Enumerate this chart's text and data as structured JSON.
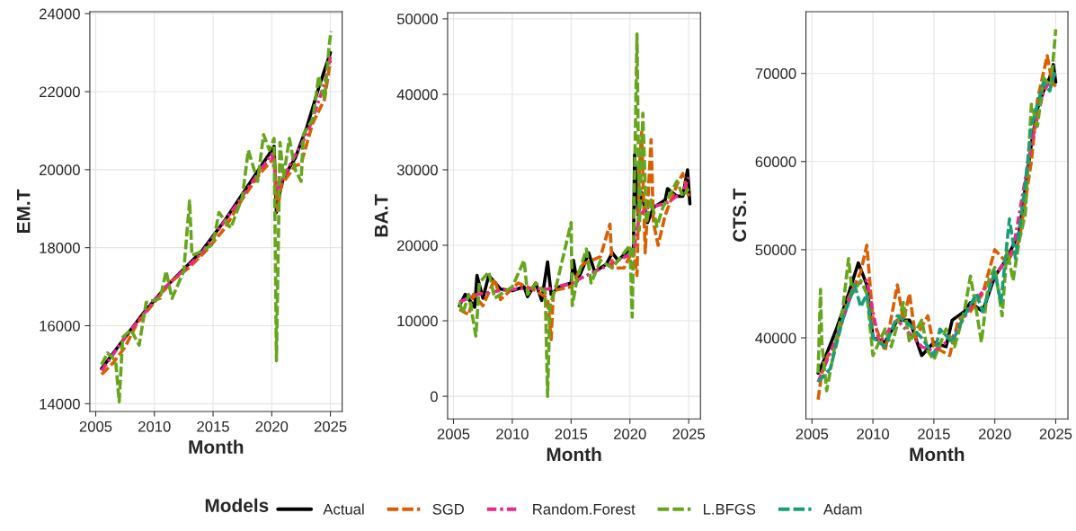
{
  "chart_data": [
    {
      "type": "line",
      "xlabel": "Month",
      "ylabel": "EM.T",
      "xlim": [
        2004.5,
        2026
      ],
      "ylim": [
        13800,
        24050
      ],
      "xticks": [
        2005,
        2010,
        2015,
        2020,
        2025
      ],
      "yticks": [
        14000,
        16000,
        18000,
        20000,
        22000,
        24000
      ],
      "grid": true,
      "legend": "bottom",
      "legend_title": "Models",
      "series": [
        {
          "name": "Actual",
          "color": "#000000",
          "line_style": "solid",
          "x": [
            2005.5,
            2006,
            2007,
            2008,
            2009,
            2010,
            2011,
            2012,
            2013,
            2014,
            2015,
            2016,
            2017,
            2018,
            2019,
            2020,
            2020.2,
            2020.4,
            2020.6,
            2021,
            2022,
            2023,
            2024,
            2025
          ],
          "values": [
            14900,
            15100,
            15500,
            15900,
            16300,
            16650,
            17000,
            17300,
            17600,
            17900,
            18300,
            18700,
            19150,
            19600,
            20050,
            20500,
            20600,
            18900,
            19300,
            19800,
            20300,
            21100,
            22100,
            23000
          ]
        },
        {
          "name": "SGD",
          "color": "#d95f02",
          "line_style": "dashed",
          "x": [
            2005.5,
            2006.5,
            2007.5,
            2008.5,
            2010,
            2011.5,
            2013,
            2014.5,
            2016,
            2017.5,
            2019,
            2020.2,
            2020.5,
            2020.8,
            2022,
            2022.5,
            2023.5,
            2024.5,
            2025
          ],
          "values": [
            14750,
            15050,
            15450,
            16050,
            16600,
            17150,
            17500,
            17950,
            18500,
            19250,
            19900,
            20300,
            18950,
            19600,
            20100,
            20150,
            21200,
            21800,
            22800
          ]
        },
        {
          "name": "Random.Forest",
          "color": "#e7298a",
          "line_style": "dotted",
          "x": [
            2005.5,
            2008,
            2011,
            2014,
            2017,
            2020,
            2020.5,
            2021.5,
            2023,
            2024.5,
            2025
          ],
          "values": [
            14850,
            15900,
            17000,
            17850,
            19100,
            20400,
            19500,
            20100,
            20900,
            22200,
            22900
          ]
        },
        {
          "name": "L.BFGS",
          "color": "#66a61e",
          "line_style": "dashed",
          "x": [
            2005.5,
            2006,
            2006.7,
            2007,
            2007.3,
            2008,
            2008.7,
            2009.3,
            2010.5,
            2011,
            2011.5,
            2012.5,
            2013,
            2013.2,
            2014,
            2015,
            2015.5,
            2016.5,
            2017.5,
            2018,
            2018.8,
            2019.3,
            2019.8,
            2020.2,
            2020.4,
            2020.7,
            2021,
            2021.5,
            2022,
            2022.5,
            2022.7,
            2023.5,
            2024,
            2024.5,
            2024.9,
            2025.05
          ],
          "values": [
            15000,
            15300,
            15100,
            14050,
            15700,
            15900,
            15500,
            16600,
            16700,
            17400,
            16700,
            17400,
            19200,
            17800,
            17900,
            18100,
            18900,
            18500,
            19300,
            20500,
            19700,
            20900,
            20500,
            20800,
            15100,
            20700,
            19800,
            20800,
            20000,
            19700,
            20900,
            21300,
            22400,
            21800,
            23200,
            23550
          ]
        }
      ]
    },
    {
      "type": "line",
      "xlabel": "Month",
      "ylabel": "BA.T",
      "xlim": [
        2004.5,
        2026
      ],
      "ylim": [
        -3000,
        50800
      ],
      "xticks": [
        2005,
        2010,
        2015,
        2020,
        2025
      ],
      "yticks": [
        0,
        10000,
        20000,
        30000,
        40000,
        50000
      ],
      "grid": true,
      "series": [
        {
          "color": "#000000",
          "line_style": "solid",
          "x": [
            2005.5,
            2006,
            2006.8,
            2007,
            2007.5,
            2008,
            2009,
            2010,
            2011,
            2011.3,
            2012,
            2012.5,
            2013,
            2013.3,
            2014,
            2015,
            2015.2,
            2015.5,
            2016,
            2016.5,
            2017,
            2018,
            2018.5,
            2019,
            2020,
            2020.3,
            2020.4,
            2020.7,
            2021,
            2021.5,
            2022,
            2023,
            2023.2,
            2024,
            2024.5,
            2024.9,
            2025.1
          ],
          "values": [
            12000,
            13500,
            11800,
            16000,
            13000,
            16000,
            14200,
            14000,
            14500,
            13200,
            15000,
            12700,
            17800,
            13500,
            14500,
            15000,
            18000,
            15200,
            17000,
            19000,
            16500,
            17500,
            19000,
            18000,
            19500,
            19000,
            32000,
            24000,
            27000,
            23000,
            25000,
            26000,
            27500,
            26500,
            26500,
            30000,
            25500
          ]
        },
        {
          "color": "#d95f02",
          "line_style": "dashed",
          "x": [
            2005.5,
            2006.3,
            2006.7,
            2007.5,
            2008.5,
            2009,
            2010.5,
            2012,
            2013,
            2013.3,
            2013.5,
            2015,
            2016,
            2017.5,
            2018.3,
            2018.5,
            2019.5,
            2020.3,
            2020.6,
            2020.8,
            2021,
            2021.3,
            2021.8,
            2022,
            2022.4,
            2023,
            2024,
            2024.5,
            2025
          ],
          "values": [
            11500,
            10800,
            13500,
            12000,
            15500,
            12800,
            15000,
            14000,
            13000,
            7500,
            14000,
            14500,
            17500,
            18500,
            22800,
            17000,
            17000,
            19500,
            16000,
            30000,
            35000,
            19000,
            34000,
            23000,
            20000,
            24000,
            28000,
            29500,
            26500
          ]
        },
        {
          "color": "#e7298a",
          "line_style": "dotted",
          "x": [
            2005.5,
            2007,
            2009,
            2011,
            2013,
            2015,
            2017,
            2019,
            2020.3,
            2020.8,
            2021.5,
            2023,
            2024.5,
            2025
          ],
          "values": [
            12500,
            13500,
            14000,
            14300,
            14200,
            15000,
            16500,
            18000,
            19000,
            24000,
            25000,
            25500,
            27000,
            29000
          ]
        },
        {
          "color": "#66a61e",
          "line_style": "dashed",
          "x": [
            2005.5,
            2005.8,
            2006.3,
            2006.9,
            2007.2,
            2008,
            2008.5,
            2010,
            2011,
            2011.3,
            2012,
            2012.8,
            2013,
            2013.2,
            2013.8,
            2015,
            2015.1,
            2015.5,
            2016.3,
            2016.7,
            2017.5,
            2018.5,
            2019.5,
            2020,
            2020.2,
            2020.6,
            2020.8,
            2021.1,
            2021.4,
            2021.8,
            2022.3,
            2022.8,
            2023.5,
            2024,
            2024.5,
            2025
          ],
          "values": [
            12500,
            11000,
            13500,
            8000,
            15000,
            16500,
            13000,
            14500,
            18000,
            13500,
            15000,
            13800,
            0,
            12000,
            15000,
            23000,
            12000,
            15500,
            19500,
            15000,
            18000,
            17000,
            19000,
            20000,
            10500,
            48000,
            22000,
            37500,
            23000,
            26000,
            22500,
            25000,
            27000,
            28500,
            26500,
            27500
          ]
        }
      ]
    },
    {
      "type": "line",
      "xlabel": "Month",
      "ylabel": "CTS.T",
      "xlim": [
        2004.5,
        2026
      ],
      "ylim": [
        30800,
        77000
      ],
      "xticks": [
        2005,
        2010,
        2015,
        2020,
        2025
      ],
      "yticks": [
        40000,
        50000,
        60000,
        70000
      ],
      "grid": true,
      "series": [
        {
          "color": "#000000",
          "line_style": "solid",
          "x": [
            2005.5,
            2006,
            2007,
            2008,
            2008.8,
            2009.5,
            2010,
            2011,
            2012,
            2013,
            2014,
            2015,
            2016,
            2016.5,
            2017.5,
            2018,
            2019,
            2020,
            2021,
            2022,
            2022.5,
            2023,
            2023.5,
            2024,
            2024.5,
            2024.8,
            2025
          ],
          "values": [
            36000,
            37500,
            41000,
            45000,
            48500,
            46000,
            40000,
            39500,
            42000,
            42000,
            38000,
            39500,
            39000,
            42000,
            43000,
            44000,
            43000,
            47000,
            49000,
            52000,
            57000,
            62000,
            66000,
            68000,
            69500,
            71000,
            69000
          ]
        },
        {
          "color": "#d95f02",
          "line_style": "dashed",
          "x": [
            2005.5,
            2005.8,
            2006.3,
            2007,
            2008,
            2009,
            2009.5,
            2010,
            2011,
            2012,
            2012.5,
            2013,
            2013.5,
            2014.5,
            2015,
            2016.3,
            2017,
            2018,
            2019,
            2020,
            2021,
            2022,
            2023,
            2023.5,
            2024.3,
            2024.7,
            2025
          ],
          "values": [
            33000,
            36000,
            38000,
            39500,
            44500,
            47500,
            50500,
            42000,
            38500,
            46000,
            42000,
            45000,
            40000,
            42500,
            39000,
            38000,
            42000,
            43000,
            45000,
            50000,
            48500,
            51000,
            60000,
            67000,
            72000,
            69000,
            68500
          ]
        },
        {
          "color": "#e7298a",
          "line_style": "dotted",
          "x": [
            2005.5,
            2007,
            2008.5,
            2009.5,
            2010.5,
            2012,
            2014,
            2015,
            2016.5,
            2018,
            2020,
            2021.5,
            2023,
            2024,
            2025
          ],
          "values": [
            35000,
            40000,
            46000,
            46500,
            39500,
            42000,
            39000,
            38500,
            40000,
            43500,
            47000,
            50000,
            62000,
            68000,
            70000
          ]
        },
        {
          "color": "#66a61e",
          "line_style": "dashed",
          "x": [
            2005.5,
            2005.7,
            2005.8,
            2006.2,
            2007,
            2007.5,
            2008,
            2008.3,
            2009,
            2009.5,
            2010,
            2011,
            2011.5,
            2012.5,
            2013,
            2014,
            2014.5,
            2015,
            2016,
            2016.7,
            2017.5,
            2018,
            2018.5,
            2018.9,
            2019.5,
            2020,
            2020.6,
            2021,
            2021.5,
            2022,
            2022.5,
            2023,
            2023.5,
            2024,
            2024.6,
            2025
          ],
          "values": [
            36000,
            45500,
            39500,
            34000,
            40000,
            43000,
            49000,
            45000,
            46500,
            45000,
            38000,
            41000,
            39000,
            44000,
            39500,
            42000,
            38500,
            37500,
            41000,
            39000,
            43000,
            47000,
            43000,
            39500,
            46500,
            48000,
            42500,
            50000,
            46500,
            51000,
            54000,
            66500,
            64000,
            69500,
            68500,
            75000
          ]
        },
        {
          "name": "Adam",
          "color": "#1b9e77",
          "line_style": "dashed",
          "x": [
            2005.5,
            2006.5,
            2007.5,
            2008.5,
            2009,
            2009.5,
            2010,
            2011,
            2012,
            2013,
            2014,
            2015,
            2015.5,
            2016.5,
            2017.5,
            2018.5,
            2019,
            2020,
            2020.5,
            2021.2,
            2021.7,
            2022.5,
            2023,
            2023.5,
            2024,
            2024.5,
            2025
          ],
          "values": [
            35000,
            36500,
            42000,
            46000,
            43500,
            45000,
            40000,
            39000,
            42500,
            41500,
            40000,
            38000,
            41000,
            39500,
            42500,
            45000,
            43000,
            47500,
            44000,
            53500,
            49000,
            57500,
            64000,
            66500,
            69000,
            68000,
            70500
          ]
        }
      ]
    }
  ]
}
